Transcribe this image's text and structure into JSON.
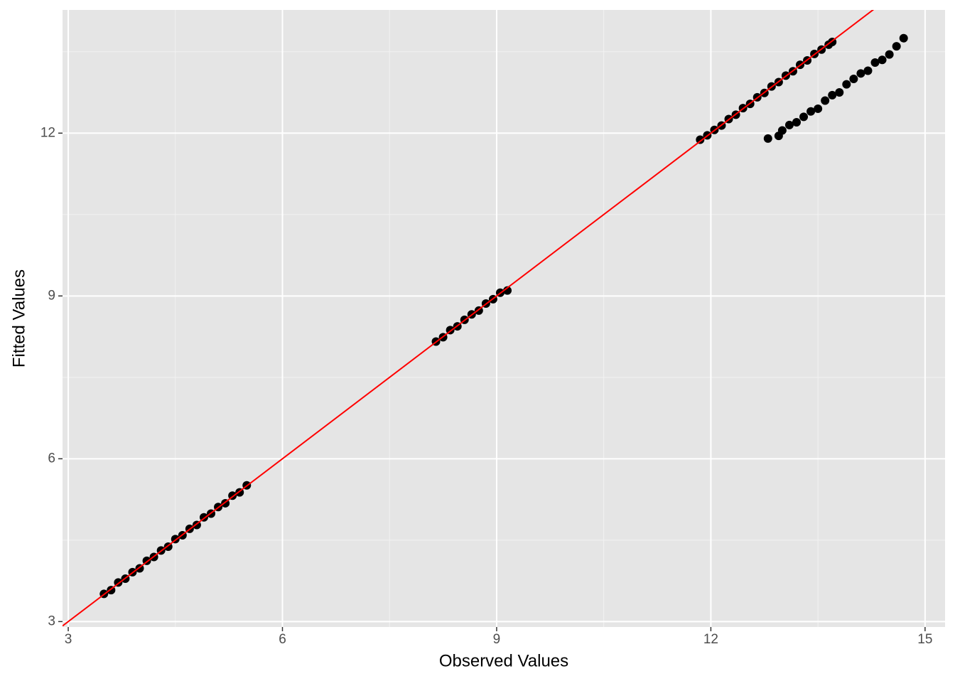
{
  "chart_data": {
    "type": "scatter",
    "x_label": "Observed Values",
    "y_label": "Fitted Values",
    "x": [
      3.5,
      3.6,
      3.7,
      3.8,
      3.9,
      4.0,
      4.1,
      4.2,
      4.3,
      4.4,
      4.5,
      4.6,
      4.7,
      4.8,
      4.9,
      5.0,
      5.1,
      5.2,
      5.3,
      5.4,
      5.5,
      8.15,
      8.25,
      8.35,
      8.45,
      8.55,
      8.65,
      8.75,
      8.85,
      8.95,
      9.05,
      9.15,
      11.85,
      11.95,
      12.05,
      12.15,
      12.25,
      12.35,
      12.45,
      12.55,
      12.65,
      12.75,
      12.85,
      12.95,
      13.05,
      13.15,
      13.25,
      13.35,
      13.45,
      13.55,
      13.65,
      13.7,
      12.8,
      12.95,
      13.0,
      13.1,
      13.2,
      13.3,
      13.4,
      13.5,
      13.6,
      13.7,
      13.8,
      13.9,
      14.0,
      14.1,
      14.2,
      14.3,
      14.4,
      14.5,
      14.6,
      14.7
    ],
    "values": [
      3.51,
      3.58,
      3.72,
      3.79,
      3.91,
      3.98,
      4.12,
      4.19,
      4.31,
      4.38,
      4.52,
      4.59,
      4.71,
      4.78,
      4.92,
      4.99,
      5.11,
      5.18,
      5.32,
      5.38,
      5.51,
      8.16,
      8.24,
      8.37,
      8.44,
      8.56,
      8.66,
      8.73,
      8.86,
      8.94,
      9.06,
      9.1,
      11.88,
      11.96,
      12.06,
      12.14,
      12.26,
      12.34,
      12.46,
      12.54,
      12.66,
      12.74,
      12.86,
      12.94,
      13.06,
      13.14,
      13.26,
      13.34,
      13.46,
      13.54,
      13.63,
      13.68,
      11.9,
      11.95,
      12.05,
      12.15,
      12.2,
      12.3,
      12.4,
      12.45,
      12.6,
      12.7,
      12.75,
      12.9,
      13.0,
      13.1,
      13.15,
      13.3,
      13.35,
      13.45,
      13.6,
      13.75
    ],
    "color": "#000000",
    "reference_line": {
      "slope": 1,
      "intercept": 0,
      "color": "#ff0000"
    },
    "xlim": [
      2.92,
      15.28
    ],
    "ylim": [
      2.9,
      14.27
    ],
    "xticks": [
      3,
      6,
      9,
      12,
      15
    ],
    "yticks": [
      3,
      6,
      9,
      12
    ],
    "x_minor_ticks": [
      4.5,
      7.5,
      10.5,
      13.5
    ],
    "y_minor_ticks": [
      4.5,
      7.5,
      10.5,
      13.5
    ],
    "grid": true
  }
}
